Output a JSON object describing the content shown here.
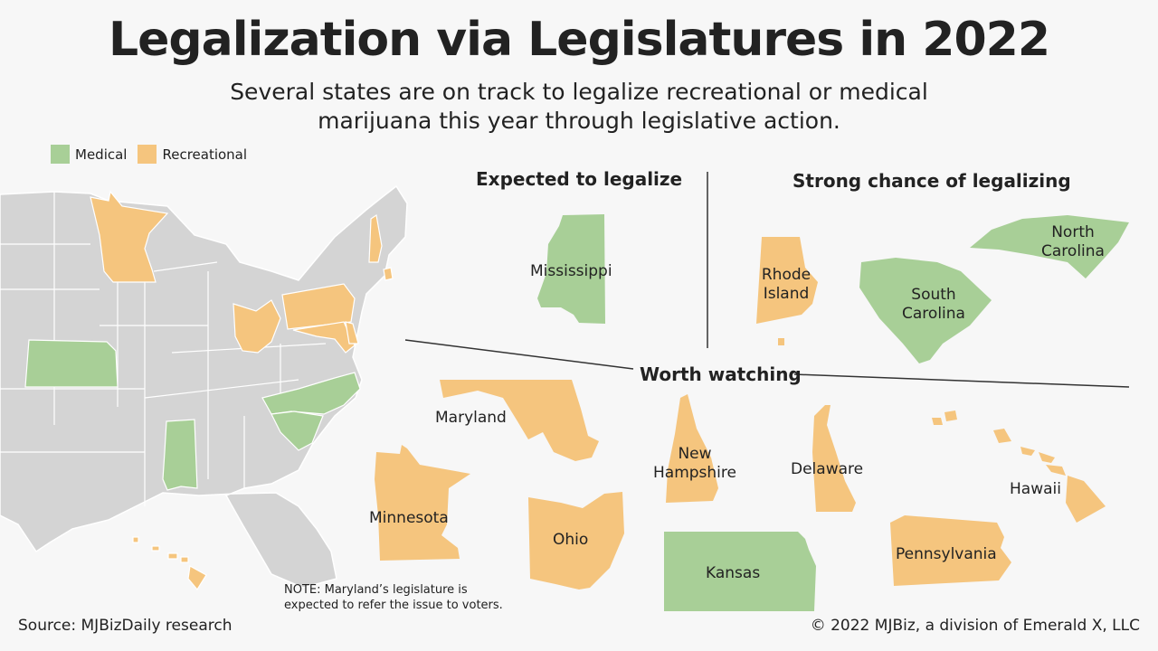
{
  "title": "Legalization via Legislatures in 2022",
  "subtitle": "Several states are on track to legalize recreational or medical marijuana this year through legislative action.",
  "legend": [
    {
      "label": "Medical",
      "color": "#a8cf97"
    },
    {
      "label": "Recreational",
      "color": "#f5c57e"
    }
  ],
  "colors": {
    "medical": "#a8cf97",
    "recreational": "#f5c57e",
    "base": "#d4d4d4",
    "border": "#ffffff"
  },
  "sections": {
    "expected": "Expected to legalize",
    "strong": "Strong chance of legalizing",
    "watching": "Worth watching"
  },
  "states": {
    "mississippi": {
      "name": "Mississippi",
      "type": "medical"
    },
    "rhode_island": {
      "name": "Rhode Island",
      "type": "recreational"
    },
    "south_carolina": {
      "name": "South Carolina",
      "type": "medical"
    },
    "north_carolina": {
      "name": "North Carolina",
      "type": "medical"
    },
    "maryland": {
      "name": "Maryland",
      "type": "recreational"
    },
    "minnesota": {
      "name": "Minnesota",
      "type": "recreational"
    },
    "ohio": {
      "name": "Ohio",
      "type": "recreational"
    },
    "new_hampshire": {
      "name": "New Hampshire",
      "type": "recreational"
    },
    "delaware": {
      "name": "Delaware",
      "type": "recreational"
    },
    "hawaii": {
      "name": "Hawaii",
      "type": "recreational"
    },
    "pennsylvania": {
      "name": "Pennsylvania",
      "type": "recreational"
    },
    "kansas": {
      "name": "Kansas",
      "type": "medical"
    }
  },
  "note": "NOTE: Maryland’s legislature is expected to refer the issue to voters.",
  "source": "Source: MJBizDaily research",
  "copyright": "© 2022 MJBiz, a division of Emerald X, LLC"
}
